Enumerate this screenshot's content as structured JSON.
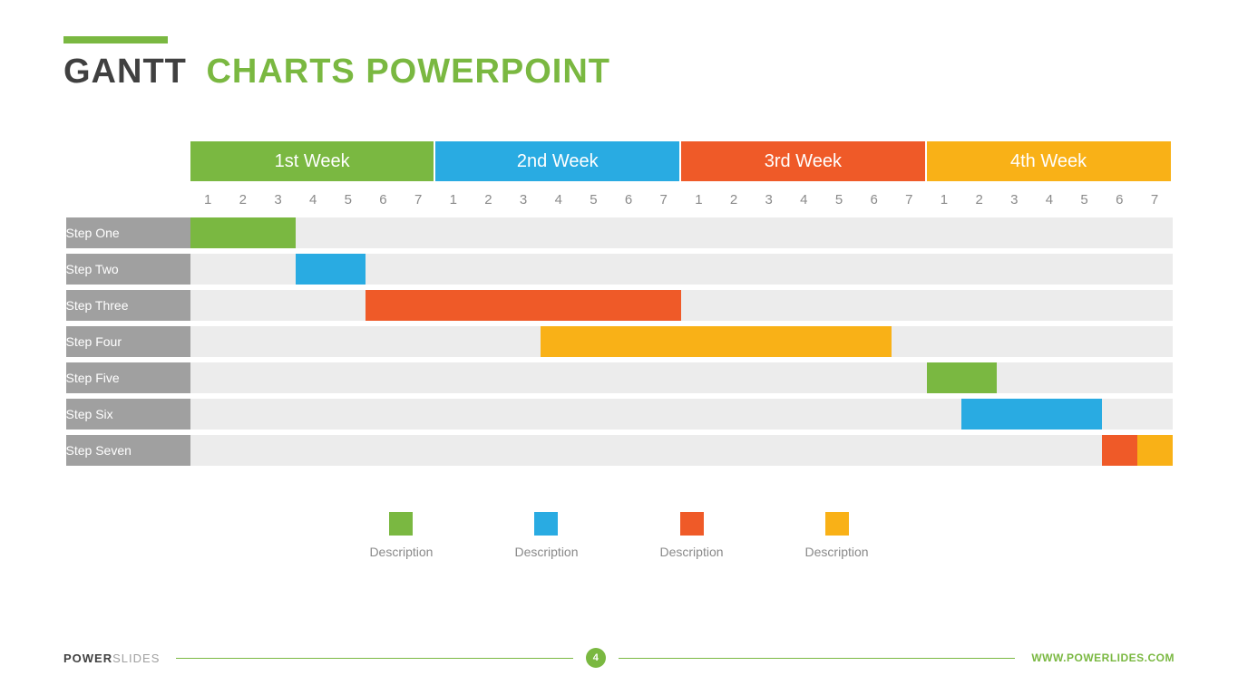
{
  "title": {
    "first": "GANTT",
    "rest": "CHARTS POWERPOINT",
    "first_color": "#404040",
    "rest_color": "#7ab841",
    "accent_color": "#7ab841"
  },
  "palette": {
    "green": "#7ab841",
    "blue": "#29abe2",
    "orange": "#ef5a28",
    "yellow": "#f9b117",
    "grid_bg": "#ececec",
    "row_label_bg": "#a0a0a0",
    "day_text": "#8a8a8a"
  },
  "gantt": {
    "days_per_week": 7,
    "weeks": [
      {
        "label": "1st Week",
        "color": "#7ab841"
      },
      {
        "label": "2nd Week",
        "color": "#29abe2"
      },
      {
        "label": "3rd Week",
        "color": "#ef5a28"
      },
      {
        "label": "4th Week",
        "color": "#f9b117"
      }
    ],
    "day_labels": [
      "1",
      "2",
      "3",
      "4",
      "5",
      "6",
      "7"
    ],
    "rows": [
      {
        "label": "Step One",
        "bars": [
          {
            "start": 1,
            "end": 3,
            "color": "#7ab841"
          }
        ]
      },
      {
        "label": "Step Two",
        "bars": [
          {
            "start": 4,
            "end": 5,
            "color": "#29abe2"
          }
        ]
      },
      {
        "label": "Step Three",
        "bars": [
          {
            "start": 6,
            "end": 14,
            "color": "#ef5a28"
          }
        ]
      },
      {
        "label": "Step Four",
        "bars": [
          {
            "start": 11,
            "end": 20,
            "color": "#f9b117"
          }
        ]
      },
      {
        "label": "Step Five",
        "bars": [
          {
            "start": 22,
            "end": 23,
            "color": "#7ab841"
          }
        ]
      },
      {
        "label": "Step Six",
        "bars": [
          {
            "start": 23,
            "end": 26,
            "color": "#29abe2"
          }
        ]
      },
      {
        "label": "Step Seven",
        "bars": [
          {
            "start": 27,
            "end": 27,
            "color": "#ef5a28"
          },
          {
            "start": 28,
            "end": 28,
            "color": "#f9b117"
          }
        ]
      }
    ]
  },
  "legend": [
    {
      "color": "#7ab841",
      "label": "Description"
    },
    {
      "color": "#29abe2",
      "label": "Description"
    },
    {
      "color": "#ef5a28",
      "label": "Description"
    },
    {
      "color": "#f9b117",
      "label": "Description"
    }
  ],
  "footer": {
    "brand_first": "POWER",
    "brand_second": "SLIDES",
    "url": "WWW.POWERLIDES.COM",
    "page": "4",
    "line_color": "#7ab841",
    "brand_first_color": "#404040",
    "url_color": "#7ab841",
    "badge_color": "#7ab841"
  }
}
